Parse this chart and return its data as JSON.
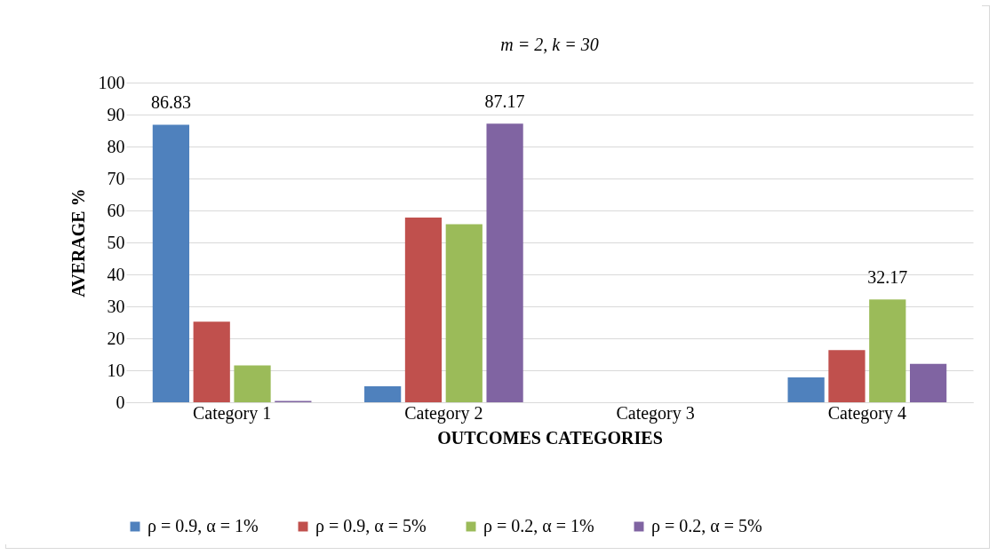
{
  "chart_data": {
    "type": "bar",
    "title": "m = 2, k = 30",
    "xlabel": "OUTCOMES CATEGORIES",
    "ylabel": "AVERAGE %",
    "categories": [
      "Category 1",
      "Category 2",
      "Category 3",
      "Category 4"
    ],
    "series": [
      {
        "name": "ρ = 0.9, α = 1%",
        "color": "#4f81bd",
        "values": [
          86.83,
          5.0,
          0,
          7.8
        ],
        "value_labels": [
          "86.83",
          null,
          null,
          null
        ]
      },
      {
        "name": "ρ = 0.9, α = 5%",
        "color": "#c0504d",
        "values": [
          25.2,
          57.8,
          0,
          16.3
        ],
        "value_labels": [
          null,
          null,
          null,
          null
        ]
      },
      {
        "name": "ρ = 0.2, α = 1%",
        "color": "#9bbb59",
        "values": [
          11.5,
          55.7,
          0,
          32.17
        ],
        "value_labels": [
          null,
          null,
          null,
          "32.17"
        ]
      },
      {
        "name": "ρ = 0.2, α = 5%",
        "color": "#8064a2",
        "values": [
          0.4,
          87.17,
          0,
          12.0
        ],
        "value_labels": [
          null,
          "87.17",
          null,
          null
        ]
      }
    ],
    "ylim": [
      0,
      100
    ],
    "yticks": [
      0,
      10,
      20,
      30,
      40,
      50,
      60,
      70,
      80,
      90,
      100
    ],
    "grid": "y",
    "legend": "bottom"
  }
}
